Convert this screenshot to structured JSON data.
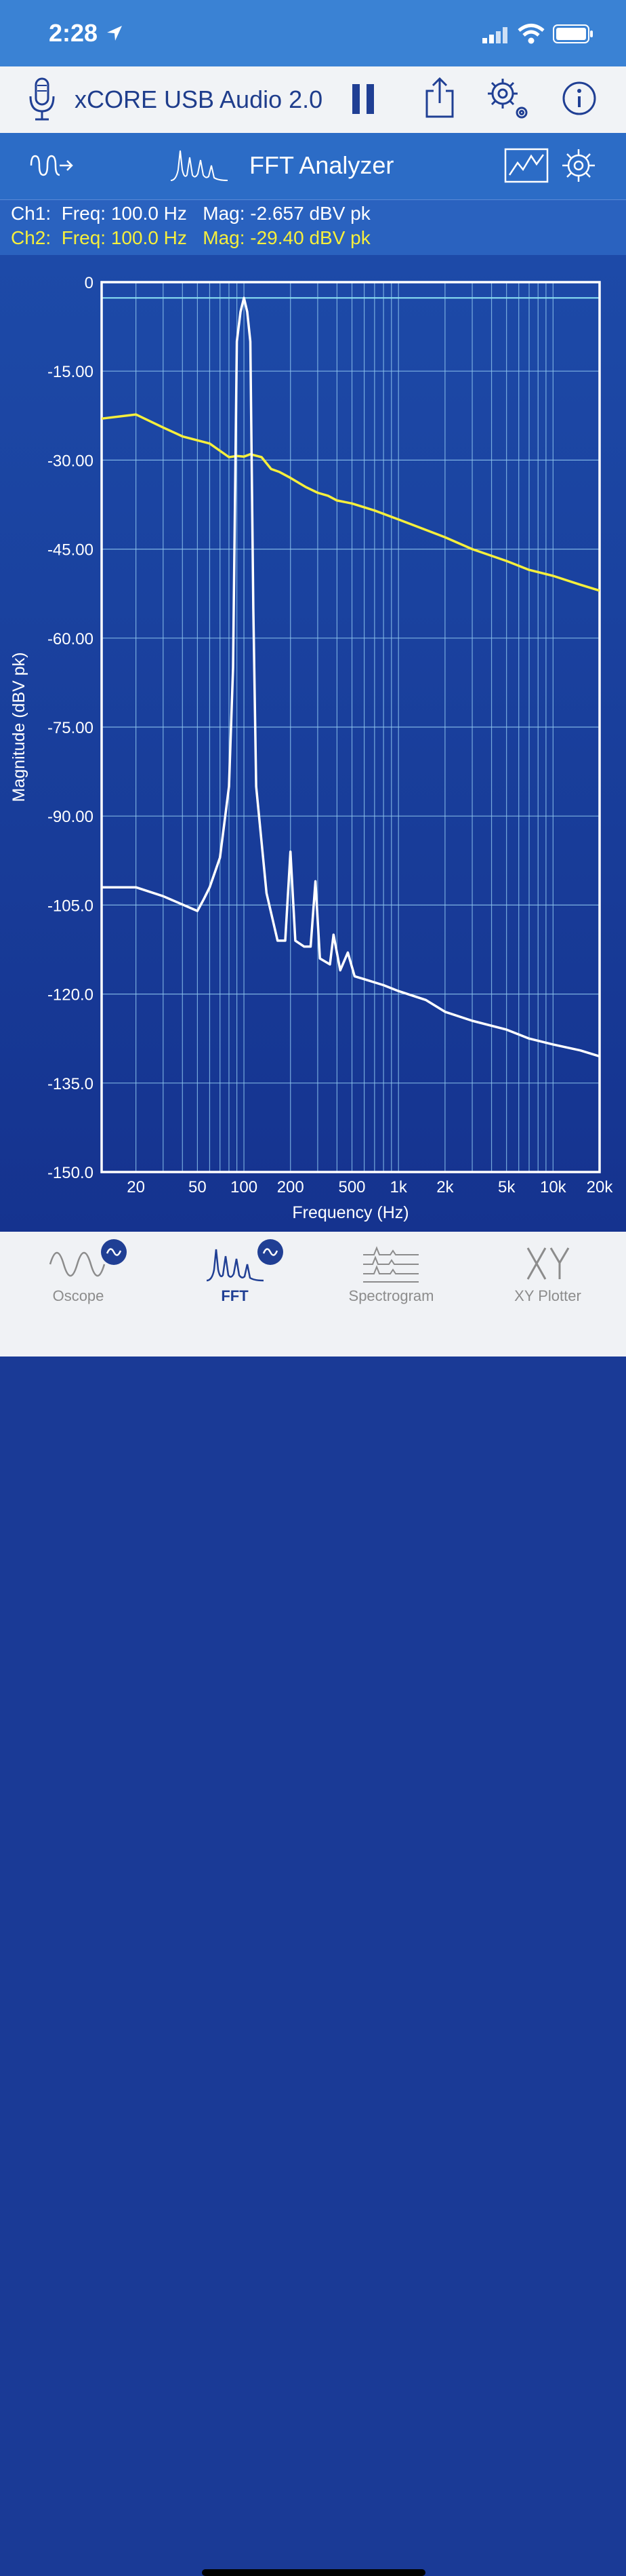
{
  "status": {
    "time": "2:28"
  },
  "device_bar": {
    "device_name": "xCORE USB Audio 2.0"
  },
  "analyzer_bar": {
    "title": "FFT Analyzer"
  },
  "readout": {
    "ch1": "Ch1:  Freq: 100.0 Hz   Mag: -2.657 dBV pk",
    "ch2": "Ch2:  Freq: 100.0 Hz   Mag: -29.40 dBV pk"
  },
  "colors": {
    "ch1": "#ffffff",
    "ch2": "#f6ef3c",
    "grid": "#8fc6ee",
    "cursor": "#8ee6f5"
  },
  "chart_data": {
    "type": "line",
    "xlabel": "Frequency (Hz)",
    "ylabel": "Magnitude (dBV pk)",
    "xscale": "log",
    "xlim": [
      12,
      20000
    ],
    "ylim": [
      -150,
      0
    ],
    "grid": true,
    "cursor_y": -2.657,
    "yticks": [
      {
        "value": 0,
        "label": "0"
      },
      {
        "value": -15,
        "label": "-15.00"
      },
      {
        "value": -30,
        "label": "-30.00"
      },
      {
        "value": -45,
        "label": "-45.00"
      },
      {
        "value": -60,
        "label": "-60.00"
      },
      {
        "value": -75,
        "label": "-75.00"
      },
      {
        "value": -90,
        "label": "-90.00"
      },
      {
        "value": -105,
        "label": "-105.0"
      },
      {
        "value": -120,
        "label": "-120.0"
      },
      {
        "value": -135,
        "label": "-135.0"
      },
      {
        "value": -150,
        "label": "-150.0"
      }
    ],
    "xticks": [
      {
        "value": 20,
        "label": "20"
      },
      {
        "value": 50,
        "label": "50"
      },
      {
        "value": 100,
        "label": "100"
      },
      {
        "value": 200,
        "label": "200"
      },
      {
        "value": 500,
        "label": "500"
      },
      {
        "value": 1000,
        "label": "1k"
      },
      {
        "value": 2000,
        "label": "2k"
      },
      {
        "value": 5000,
        "label": "5k"
      },
      {
        "value": 10000,
        "label": "10k"
      },
      {
        "value": 20000,
        "label": "20k"
      }
    ],
    "series": [
      {
        "name": "Ch2",
        "color": "#f6ef3c",
        "points": [
          [
            12,
            -23
          ],
          [
            20,
            -22.3
          ],
          [
            30,
            -24.5
          ],
          [
            40,
            -26
          ],
          [
            60,
            -27.2
          ],
          [
            80,
            -29.5
          ],
          [
            90,
            -29.3
          ],
          [
            100,
            -29.4
          ],
          [
            110,
            -29
          ],
          [
            130,
            -29.5
          ],
          [
            150,
            -31.5
          ],
          [
            170,
            -32
          ],
          [
            200,
            -33
          ],
          [
            250,
            -34.5
          ],
          [
            300,
            -35.5
          ],
          [
            350,
            -36
          ],
          [
            400,
            -36.8
          ],
          [
            500,
            -37.3
          ],
          [
            700,
            -38.5
          ],
          [
            1000,
            -40
          ],
          [
            2000,
            -43
          ],
          [
            3000,
            -45
          ],
          [
            5000,
            -47
          ],
          [
            7000,
            -48.5
          ],
          [
            10000,
            -49.5
          ],
          [
            15000,
            -51
          ],
          [
            20000,
            -52
          ]
        ]
      },
      {
        "name": "Ch1",
        "color": "#ffffff",
        "points": [
          [
            12,
            -102
          ],
          [
            20,
            -102
          ],
          [
            30,
            -103.5
          ],
          [
            50,
            -106
          ],
          [
            55,
            -104
          ],
          [
            60,
            -102
          ],
          [
            70,
            -97
          ],
          [
            80,
            -85
          ],
          [
            85,
            -65
          ],
          [
            90,
            -10
          ],
          [
            95,
            -5
          ],
          [
            100,
            -2.657
          ],
          [
            105,
            -5
          ],
          [
            110,
            -10
          ],
          [
            115,
            -55
          ],
          [
            120,
            -85
          ],
          [
            140,
            -103
          ],
          [
            165,
            -111
          ],
          [
            185,
            -111
          ],
          [
            200,
            -96
          ],
          [
            215,
            -111
          ],
          [
            245,
            -112
          ],
          [
            270,
            -112
          ],
          [
            290,
            -101
          ],
          [
            310,
            -114
          ],
          [
            360,
            -115
          ],
          [
            380,
            -110
          ],
          [
            420,
            -116
          ],
          [
            470,
            -113
          ],
          [
            520,
            -117
          ],
          [
            600,
            -117.5
          ],
          [
            800,
            -118.5
          ],
          [
            1000,
            -119.5
          ],
          [
            1500,
            -121
          ],
          [
            2000,
            -123
          ],
          [
            3000,
            -124.5
          ],
          [
            5000,
            -126
          ],
          [
            7000,
            -127.5
          ],
          [
            10000,
            -128.5
          ],
          [
            15000,
            -129.5
          ],
          [
            20000,
            -130.5
          ]
        ]
      }
    ]
  },
  "tabs": [
    {
      "label": "Oscope",
      "active": false
    },
    {
      "label": "FFT",
      "active": true
    },
    {
      "label": "Spectrogram",
      "active": false
    },
    {
      "label": "XY Plotter",
      "active": false
    }
  ]
}
